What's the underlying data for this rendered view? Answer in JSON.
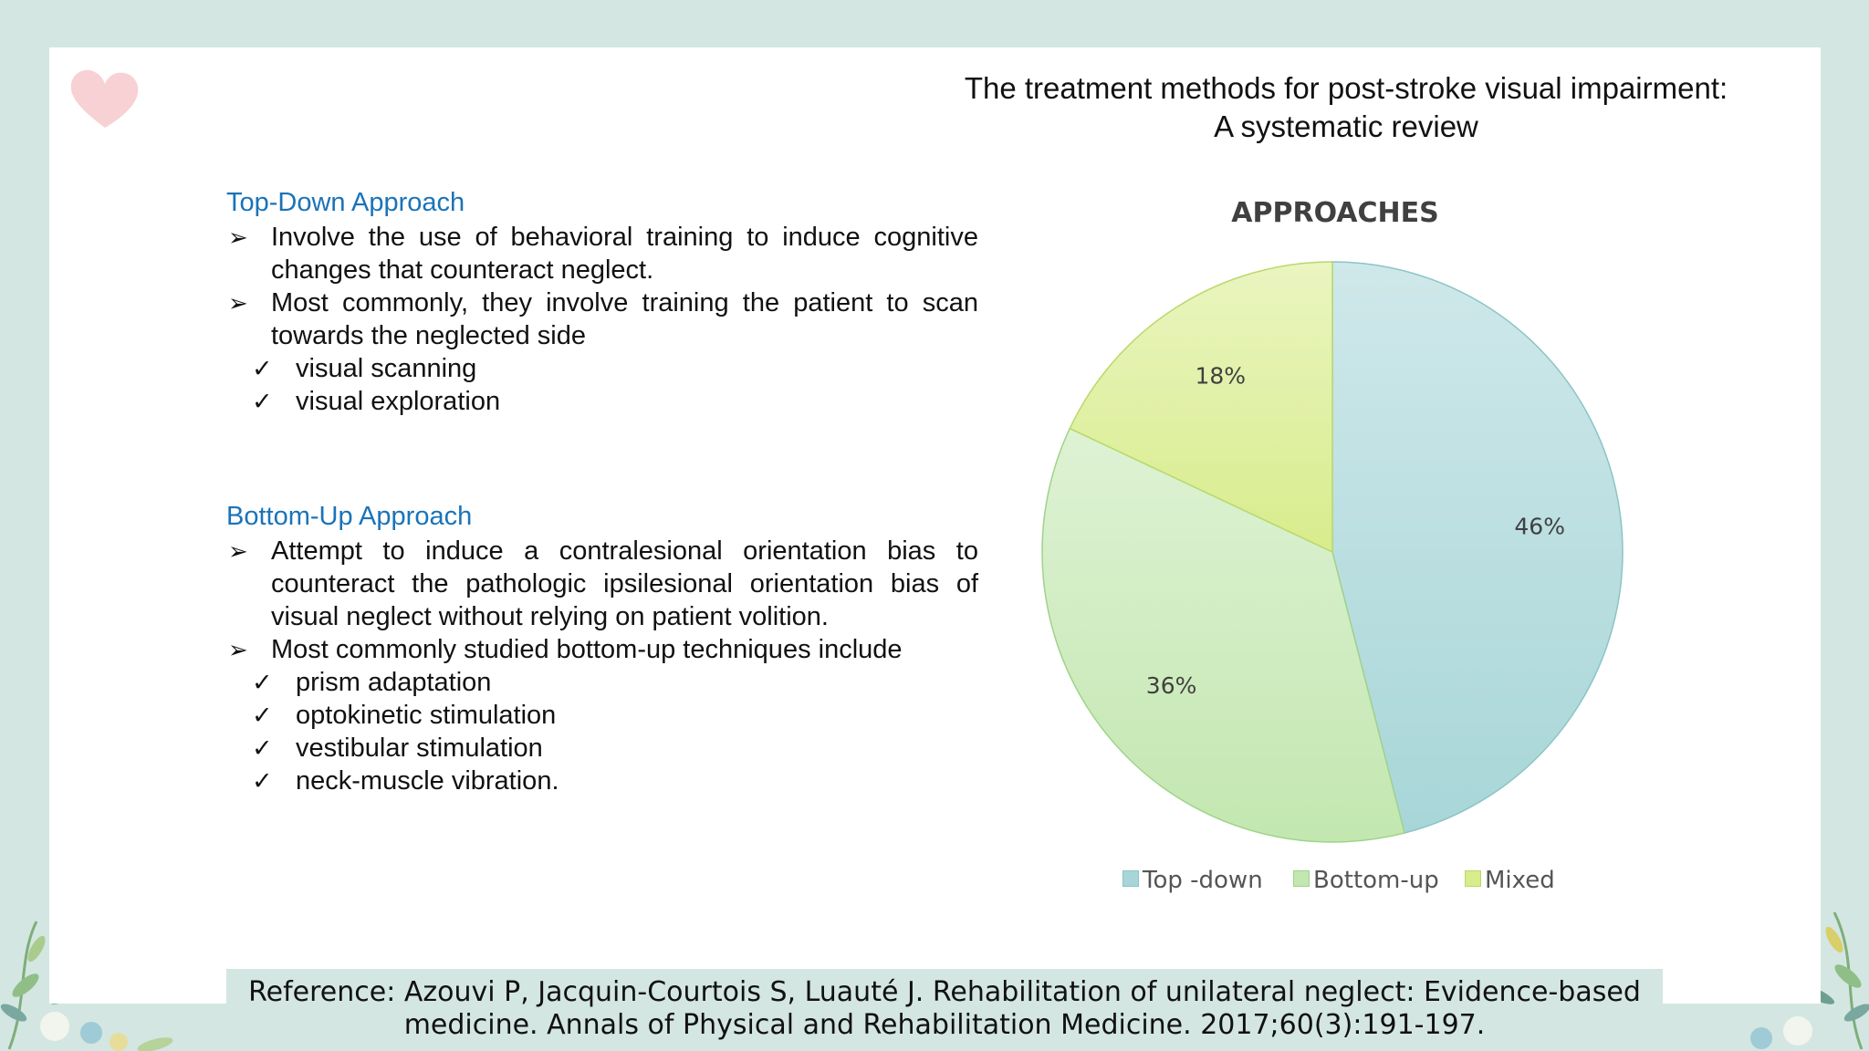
{
  "title_line1": "The treatment methods for post-stroke visual impairment:",
  "title_line2": "A systematic review",
  "top_down": {
    "heading": "Top-Down Approach",
    "bullets": [
      "Involve the use of behavioral training to induce cognitive changes that counteract neglect.",
      "Most commonly, they involve training the patient to scan towards the neglected side"
    ],
    "checks": [
      "visual scanning",
      "visual exploration"
    ]
  },
  "bottom_up": {
    "heading": "Bottom-Up Approach",
    "bullets": [
      "Attempt to induce a contralesional orientation bias to counteract the pathologic ipsilesional orientation bias of visual neglect without relying on patient volition.",
      "Most commonly studied bottom-up techniques include"
    ],
    "checks": [
      "prism adaptation",
      "optokinetic stimulation",
      "vestibular stimulation",
      "neck-muscle vibration."
    ]
  },
  "chart_data": {
    "type": "pie",
    "title": "APPROACHES",
    "categories": [
      "Top -down",
      "Bottom-up",
      "Mixed"
    ],
    "values": [
      46,
      36,
      18
    ],
    "labels": [
      "46%",
      "36%",
      "18%"
    ],
    "colors": [
      "#a8d6d8",
      "#c3e7b0",
      "#d8ec8c"
    ],
    "legend_position": "bottom"
  },
  "reference": {
    "line1": "Reference: Azouvi P, Jacquin-Courtois S, Luauté J. Rehabilitation of unilateral neglect: Evidence-based",
    "line2": "medicine. Annals of Physical and Rehabilitation Medicine. 2017;60(3):191-197."
  }
}
